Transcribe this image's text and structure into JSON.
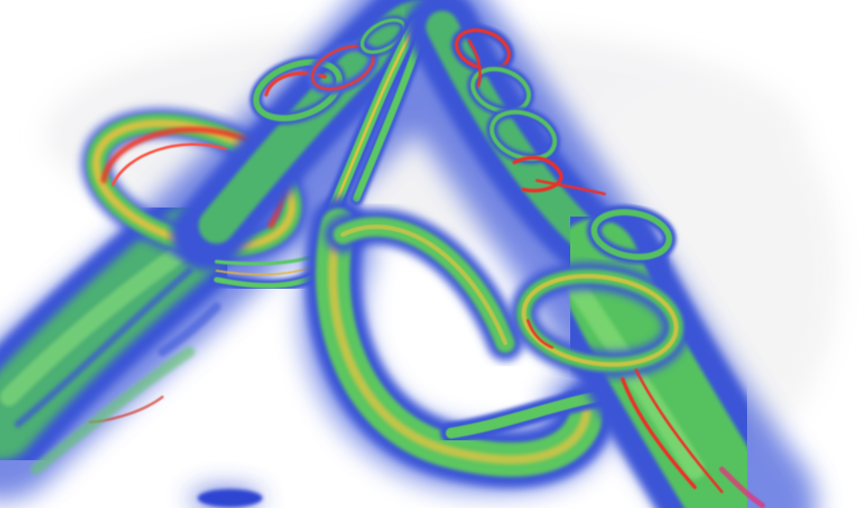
{
  "image": {
    "kind": "volume-rendering",
    "subject": "vortex-tubes",
    "background": "#ffffff",
    "palette": {
      "outer": "#3b55d6",
      "middle": "#52c25a",
      "inner": "#f2c23c",
      "core": "#f0302c",
      "haze": "#ebebeb"
    }
  }
}
